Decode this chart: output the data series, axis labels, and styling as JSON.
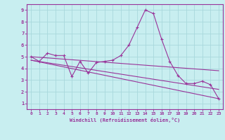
{
  "xlabel": "Windchill (Refroidissement éolien,°C)",
  "bg_color": "#c8eef0",
  "grid_color": "#a8d8dc",
  "line_color": "#993399",
  "xlim": [
    -0.5,
    23.5
  ],
  "ylim": [
    0.5,
    9.5
  ],
  "xticks": [
    0,
    1,
    2,
    3,
    4,
    5,
    6,
    7,
    8,
    9,
    10,
    11,
    12,
    13,
    14,
    15,
    16,
    17,
    18,
    19,
    20,
    21,
    22,
    23
  ],
  "yticks": [
    1,
    2,
    3,
    4,
    5,
    6,
    7,
    8,
    9
  ],
  "main_series_x": [
    0,
    1,
    2,
    3,
    4,
    5,
    6,
    7,
    8,
    9,
    10,
    11,
    12,
    13,
    14,
    15,
    16,
    17,
    18,
    19,
    20,
    21,
    22,
    23
  ],
  "main_series_y": [
    5.0,
    4.6,
    5.3,
    5.1,
    5.1,
    3.3,
    4.6,
    3.6,
    4.5,
    4.6,
    4.7,
    5.1,
    6.0,
    7.5,
    9.0,
    8.7,
    6.5,
    4.6,
    3.4,
    2.7,
    2.7,
    2.9,
    2.6,
    1.4
  ],
  "trend1_x": [
    0,
    23
  ],
  "trend1_y": [
    5.0,
    3.8
  ],
  "trend2_x": [
    0,
    23
  ],
  "trend2_y": [
    4.7,
    1.4
  ],
  "trend3_x": [
    0,
    23
  ],
  "trend3_y": [
    4.7,
    2.2
  ]
}
